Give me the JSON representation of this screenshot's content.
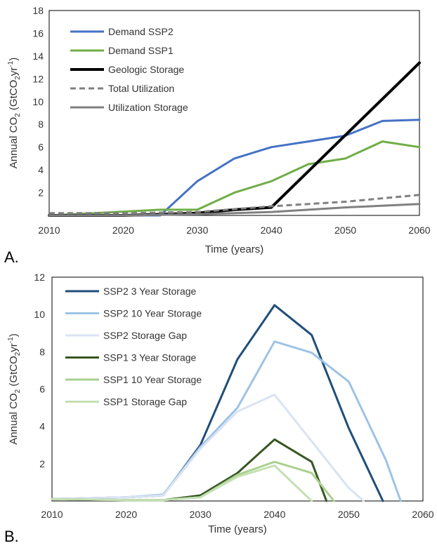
{
  "panel_labels": [
    "A.",
    "B."
  ],
  "chart_data": [
    {
      "type": "line",
      "panel": "A.",
      "xlabel": "Time (years)",
      "ylabel_prefix": "Annual CO",
      "ylabel_sub2": "2",
      "ylabel_unit": " (GtCO",
      "ylabel_sub": "2",
      "ylabel_mid": "yr",
      "ylabel_sup": "-1",
      "ylabel_end": ")",
      "xlim": [
        2010,
        2060
      ],
      "ylim": [
        0,
        18
      ],
      "xticks": [
        2010,
        2020,
        2030,
        2040,
        2050,
        2060
      ],
      "yticks": [
        2,
        4,
        6,
        8,
        10,
        12,
        14,
        16,
        18
      ],
      "grid": false,
      "legend_position": "top-left",
      "series": [
        {
          "name": "Demand SSP2",
          "color": "#4472c4",
          "dash": "solid",
          "width": 3,
          "x": [
            2010,
            2025,
            2030,
            2035,
            2040,
            2045,
            2050,
            2055,
            2060
          ],
          "y": [
            0,
            0,
            3,
            5,
            6,
            6.5,
            7,
            8.3,
            8.4
          ]
        },
        {
          "name": "Demand SSP1",
          "color": "#70ad47",
          "dash": "solid",
          "width": 3,
          "x": [
            2010,
            2025,
            2030,
            2035,
            2040,
            2045,
            2050,
            2055,
            2060
          ],
          "y": [
            0,
            0.5,
            0.5,
            2,
            3,
            4.5,
            5,
            6.5,
            6
          ]
        },
        {
          "name": "Geologic Storage",
          "color": "#000000",
          "dash": "solid",
          "width": 4,
          "x": [
            2010,
            2020,
            2030,
            2035,
            2040,
            2060
          ],
          "y": [
            0,
            0,
            0.2,
            0.5,
            0.7,
            13.4
          ]
        },
        {
          "name": "Total Utilization",
          "color": "#808080",
          "dash": "dashed",
          "width": 3,
          "x": [
            2010,
            2020,
            2030,
            2040,
            2050,
            2060
          ],
          "y": [
            0.2,
            0.2,
            0.3,
            0.8,
            1.2,
            1.8
          ]
        },
        {
          "name": "Utilization Storage",
          "color": "#808080",
          "dash": "solid",
          "width": 3,
          "x": [
            2010,
            2020,
            2030,
            2040,
            2050,
            2060
          ],
          "y": [
            0,
            0,
            0.1,
            0.3,
            0.7,
            1.0
          ]
        }
      ]
    },
    {
      "type": "line",
      "panel": "B.",
      "xlabel": "Time (years)",
      "ylabel_prefix": "Annual CO",
      "ylabel_sub2": "2",
      "ylabel_unit": " (GtCO",
      "ylabel_sub": "2",
      "ylabel_mid": "yr",
      "ylabel_sup": "-1",
      "ylabel_end": ")",
      "xlim": [
        2010,
        2060
      ],
      "ylim": [
        0,
        12
      ],
      "xticks": [
        2010,
        2020,
        2030,
        2040,
        2050,
        2060
      ],
      "yticks": [
        2,
        4,
        6,
        8,
        10,
        12
      ],
      "grid": false,
      "legend_position": "top-left",
      "series": [
        {
          "name": "SSP2 3 Year Storage",
          "color": "#1f4e79",
          "dash": "solid",
          "width": 3,
          "x": [
            2010,
            2015,
            2020,
            2025,
            2030,
            2035,
            2040,
            2045,
            2050,
            2054.6
          ],
          "y": [
            0.1,
            0.15,
            0.2,
            0.3,
            3.0,
            7.6,
            10.5,
            8.9,
            3.9,
            0
          ]
        },
        {
          "name": "SSP2 10 Year Storage",
          "color": "#9dc3e6",
          "dash": "solid",
          "width": 3,
          "x": [
            2010,
            2015,
            2020,
            2025,
            2030,
            2035,
            2040,
            2045,
            2050,
            2055,
            2057
          ],
          "y": [
            0.1,
            0.15,
            0.2,
            0.35,
            2.9,
            5.0,
            8.55,
            7.95,
            6.4,
            2.2,
            0
          ]
        },
        {
          "name": "SSP2 Storage Gap",
          "color": "#dae3f3",
          "dash": "solid",
          "width": 3,
          "x": [
            2010,
            2015,
            2020,
            2025,
            2030,
            2035,
            2040,
            2045,
            2050,
            2052
          ],
          "y": [
            0.1,
            0.15,
            0.2,
            0.3,
            2.8,
            4.8,
            5.7,
            3.2,
            0.7,
            0
          ]
        },
        {
          "name": "SSP1 3 Year Storage",
          "color": "#375623",
          "dash": "solid",
          "width": 3,
          "x": [
            2010,
            2020,
            2025,
            2030,
            2035,
            2040,
            2045,
            2047
          ],
          "y": [
            0.1,
            0.05,
            0.05,
            0.3,
            1.5,
            3.3,
            2.1,
            0
          ]
        },
        {
          "name": "SSP1 10 Year Storage",
          "color": "#a9d18e",
          "dash": "solid",
          "width": 3,
          "x": [
            2010,
            2020,
            2025,
            2030,
            2035,
            2040,
            2045,
            2048
          ],
          "y": [
            0.1,
            0.05,
            0.05,
            0.2,
            1.4,
            2.1,
            1.5,
            0
          ]
        },
        {
          "name": "SSP1 Storage Gap",
          "color": "#c5e0b4",
          "dash": "solid",
          "width": 3,
          "x": [
            2010,
            2020,
            2025,
            2030,
            2035,
            2040,
            2045
          ],
          "y": [
            0.1,
            0.05,
            0.05,
            0.2,
            1.3,
            1.9,
            0
          ]
        }
      ]
    }
  ]
}
